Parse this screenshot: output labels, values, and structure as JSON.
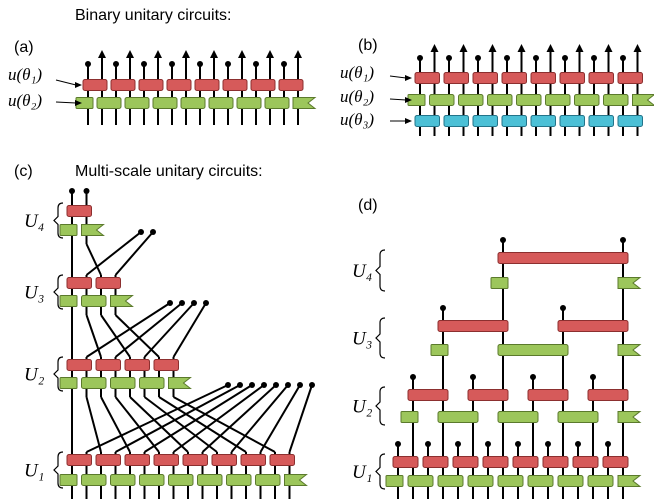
{
  "panel_ab_title": "Binary unitary circuits:",
  "panel_a": {
    "label": "(a)",
    "gate_labels": [
      "u(θ₁)",
      "u(θ₂)"
    ]
  },
  "panel_b": {
    "label": "(b)",
    "gate_labels": [
      "u(θ₁)",
      "u(θ₂)",
      "u(θ₃)"
    ]
  },
  "panel_cd_title": "Multi-scale unitary circuits:",
  "panel_c": {
    "label": "(c)",
    "scale_labels": [
      "U₄",
      "U₃",
      "U₂",
      "U₁"
    ]
  },
  "panel_d": {
    "label": "(d)",
    "scale_labels": [
      "U₄",
      "U₃",
      "U₂",
      "U₁"
    ]
  }
}
